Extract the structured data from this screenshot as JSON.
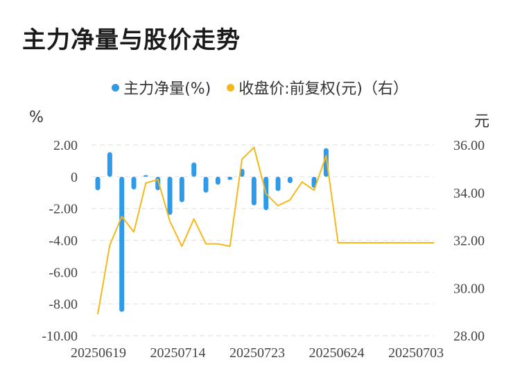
{
  "title": "主力净量与股价走势",
  "legend": {
    "series1": "主力净量(%)",
    "series2": "收盘价:前复权(元)（右）"
  },
  "left_unit": "%",
  "right_unit": "元",
  "colors": {
    "bar": "#2f9be8",
    "line": "#f5b817",
    "grid": "#e3e3e3"
  },
  "chart_data": {
    "type": "bar+line",
    "left_axis": {
      "ticks": [
        "2.00",
        "0",
        "-2.00",
        "-4.00",
        "-6.00",
        "-8.00",
        "-10.00"
      ],
      "tick_values": [
        2,
        0,
        -2,
        -4,
        -6,
        -8,
        -10
      ],
      "ylim": [
        -10,
        2
      ]
    },
    "right_axis": {
      "ticks": [
        "36.00",
        "34.00",
        "32.00",
        "30.00",
        "28.00"
      ],
      "tick_values": [
        36,
        34,
        32,
        30,
        28
      ],
      "ylim": [
        28,
        36
      ]
    },
    "x_tick_labels": [
      "20250619",
      "20250714",
      "20250723",
      "20250624",
      "20250703"
    ],
    "series": [
      {
        "name": "主力净量(%)",
        "type": "bar",
        "values": [
          -0.85,
          1.55,
          -8.5,
          -0.8,
          0.1,
          -0.85,
          -2.4,
          -1.6,
          0.9,
          -1.0,
          -0.5,
          -0.2,
          0.5,
          -1.8,
          -2.1,
          -0.9,
          -0.4,
          null,
          -0.7,
          1.8,
          null,
          null,
          null,
          null,
          null,
          null,
          null,
          null,
          null
        ]
      },
      {
        "name": "收盘价:前复权(元)（右）",
        "type": "line",
        "values": [
          28.9,
          31.8,
          33.0,
          32.35,
          34.4,
          34.55,
          32.8,
          31.75,
          32.9,
          31.85,
          31.85,
          31.75,
          35.4,
          35.9,
          33.95,
          33.45,
          33.7,
          34.45,
          34.1,
          35.55,
          31.9,
          31.9,
          31.9,
          31.9,
          31.9,
          31.9,
          31.9,
          31.9,
          31.9
        ]
      }
    ]
  }
}
